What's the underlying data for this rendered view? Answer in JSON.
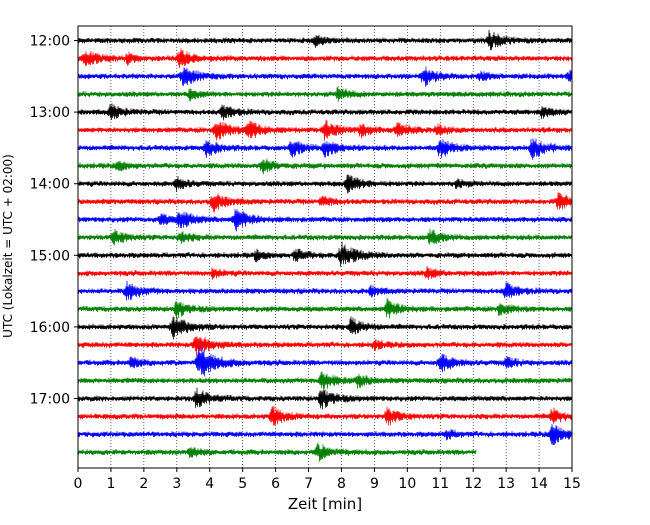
{
  "chart_data": {
    "type": "line",
    "title": "",
    "xlabel": "Zeit  [min]",
    "ylabel": "UTC (Lokalzeit = UTC + 02:00)",
    "xlim": [
      0,
      15
    ],
    "x_ticks": [
      "0",
      "1",
      "2",
      "3",
      "4",
      "5",
      "6",
      "7",
      "8",
      "9",
      "10",
      "11",
      "12",
      "13",
      "14",
      "15"
    ],
    "y_tick_labels": [
      "12:00",
      "13:00",
      "14:00",
      "15:00",
      "16:00",
      "17:00"
    ],
    "grid": "vertical dotted",
    "trace_interval_min": 15,
    "colors": [
      "#000000",
      "#ff0000",
      "#0000ff",
      "#008000"
    ],
    "traces": [
      {
        "start": "12:00",
        "color": "#000000",
        "end_min": 15,
        "events": [
          [
            12.5,
            1.0
          ],
          [
            7.2,
            0.6
          ]
        ]
      },
      {
        "start": "12:15",
        "color": "#ff0000",
        "end_min": 15,
        "events": [
          [
            0.2,
            1.0
          ],
          [
            3.1,
            0.9
          ],
          [
            1.5,
            0.5
          ]
        ]
      },
      {
        "start": "12:30",
        "color": "#0000ff",
        "end_min": 15,
        "events": [
          [
            3.2,
            1.1
          ],
          [
            10.5,
            1.0
          ],
          [
            12.2,
            0.5
          ],
          [
            14.9,
            0.6
          ]
        ]
      },
      {
        "start": "12:45",
        "color": "#008000",
        "end_min": 15,
        "events": [
          [
            7.9,
            0.7
          ],
          [
            3.4,
            0.5
          ]
        ]
      },
      {
        "start": "13:00",
        "color": "#000000",
        "end_min": 15,
        "events": [
          [
            1.0,
            0.8
          ],
          [
            4.4,
            0.8
          ],
          [
            14.1,
            0.6
          ]
        ]
      },
      {
        "start": "13:15",
        "color": "#ff0000",
        "end_min": 15,
        "events": [
          [
            4.2,
            1.1
          ],
          [
            5.2,
            1.0
          ],
          [
            7.5,
            1.0
          ],
          [
            8.6,
            0.7
          ],
          [
            9.7,
            0.8
          ],
          [
            10.9,
            0.6
          ]
        ]
      },
      {
        "start": "13:30",
        "color": "#0000ff",
        "end_min": 15,
        "events": [
          [
            3.9,
            0.9
          ],
          [
            6.5,
            0.9
          ],
          [
            7.5,
            0.9
          ],
          [
            11.0,
            1.0
          ],
          [
            13.8,
            1.1
          ]
        ]
      },
      {
        "start": "13:45",
        "color": "#008000",
        "end_min": 15,
        "events": [
          [
            5.6,
            0.8
          ],
          [
            1.2,
            0.5
          ]
        ]
      },
      {
        "start": "14:00",
        "color": "#000000",
        "end_min": 15,
        "events": [
          [
            8.2,
            1.0
          ],
          [
            3.0,
            0.7
          ],
          [
            11.5,
            0.5
          ]
        ]
      },
      {
        "start": "14:15",
        "color": "#ff0000",
        "end_min": 15,
        "events": [
          [
            4.1,
            1.0
          ],
          [
            7.4,
            0.6
          ],
          [
            14.6,
            0.9
          ]
        ]
      },
      {
        "start": "14:30",
        "color": "#0000ff",
        "end_min": 15,
        "events": [
          [
            3.1,
            1.0
          ],
          [
            4.8,
            1.2
          ],
          [
            2.5,
            0.6
          ]
        ]
      },
      {
        "start": "14:45",
        "color": "#008000",
        "end_min": 15,
        "events": [
          [
            1.1,
            0.8
          ],
          [
            3.1,
            0.6
          ],
          [
            10.7,
            0.8
          ]
        ]
      },
      {
        "start": "15:00",
        "color": "#000000",
        "end_min": 15,
        "events": [
          [
            8.0,
            1.3
          ],
          [
            6.6,
            0.7
          ],
          [
            5.4,
            0.5
          ]
        ]
      },
      {
        "start": "15:15",
        "color": "#ff0000",
        "end_min": 15,
        "events": [
          [
            4.1,
            0.5
          ],
          [
            10.6,
            0.6
          ]
        ]
      },
      {
        "start": "15:30",
        "color": "#0000ff",
        "end_min": 15,
        "events": [
          [
            1.5,
            1.0
          ],
          [
            13.0,
            0.9
          ],
          [
            8.9,
            0.5
          ]
        ]
      },
      {
        "start": "15:45",
        "color": "#008000",
        "end_min": 15,
        "events": [
          [
            3.0,
            0.9
          ],
          [
            9.4,
            1.0
          ],
          [
            12.8,
            0.7
          ]
        ]
      },
      {
        "start": "16:00",
        "color": "#000000",
        "end_min": 15,
        "events": [
          [
            2.9,
            1.2
          ],
          [
            8.3,
            0.9
          ]
        ]
      },
      {
        "start": "16:15",
        "color": "#ff0000",
        "end_min": 15,
        "events": [
          [
            3.6,
            1.2
          ],
          [
            9.0,
            0.5
          ]
        ]
      },
      {
        "start": "16:30",
        "color": "#0000ff",
        "end_min": 15,
        "events": [
          [
            3.7,
            1.6
          ],
          [
            11.0,
            1.0
          ],
          [
            13.0,
            0.6
          ],
          [
            1.6,
            0.6
          ]
        ]
      },
      {
        "start": "16:45",
        "color": "#008000",
        "end_min": 15,
        "events": [
          [
            7.4,
            1.0
          ],
          [
            8.5,
            0.7
          ]
        ]
      },
      {
        "start": "17:00",
        "color": "#000000",
        "end_min": 15,
        "events": [
          [
            3.6,
            1.0
          ],
          [
            7.4,
            1.1
          ]
        ]
      },
      {
        "start": "17:15",
        "color": "#ff0000",
        "end_min": 15,
        "events": [
          [
            5.9,
            1.0
          ],
          [
            9.4,
            0.9
          ],
          [
            14.4,
            0.8
          ]
        ]
      },
      {
        "start": "17:30",
        "color": "#0000ff",
        "end_min": 15,
        "events": [
          [
            14.4,
            1.1
          ],
          [
            11.2,
            0.5
          ]
        ]
      },
      {
        "start": "17:45",
        "color": "#008000",
        "end_min": 12.1,
        "events": [
          [
            7.3,
            0.9
          ],
          [
            3.4,
            0.6
          ]
        ]
      }
    ]
  }
}
